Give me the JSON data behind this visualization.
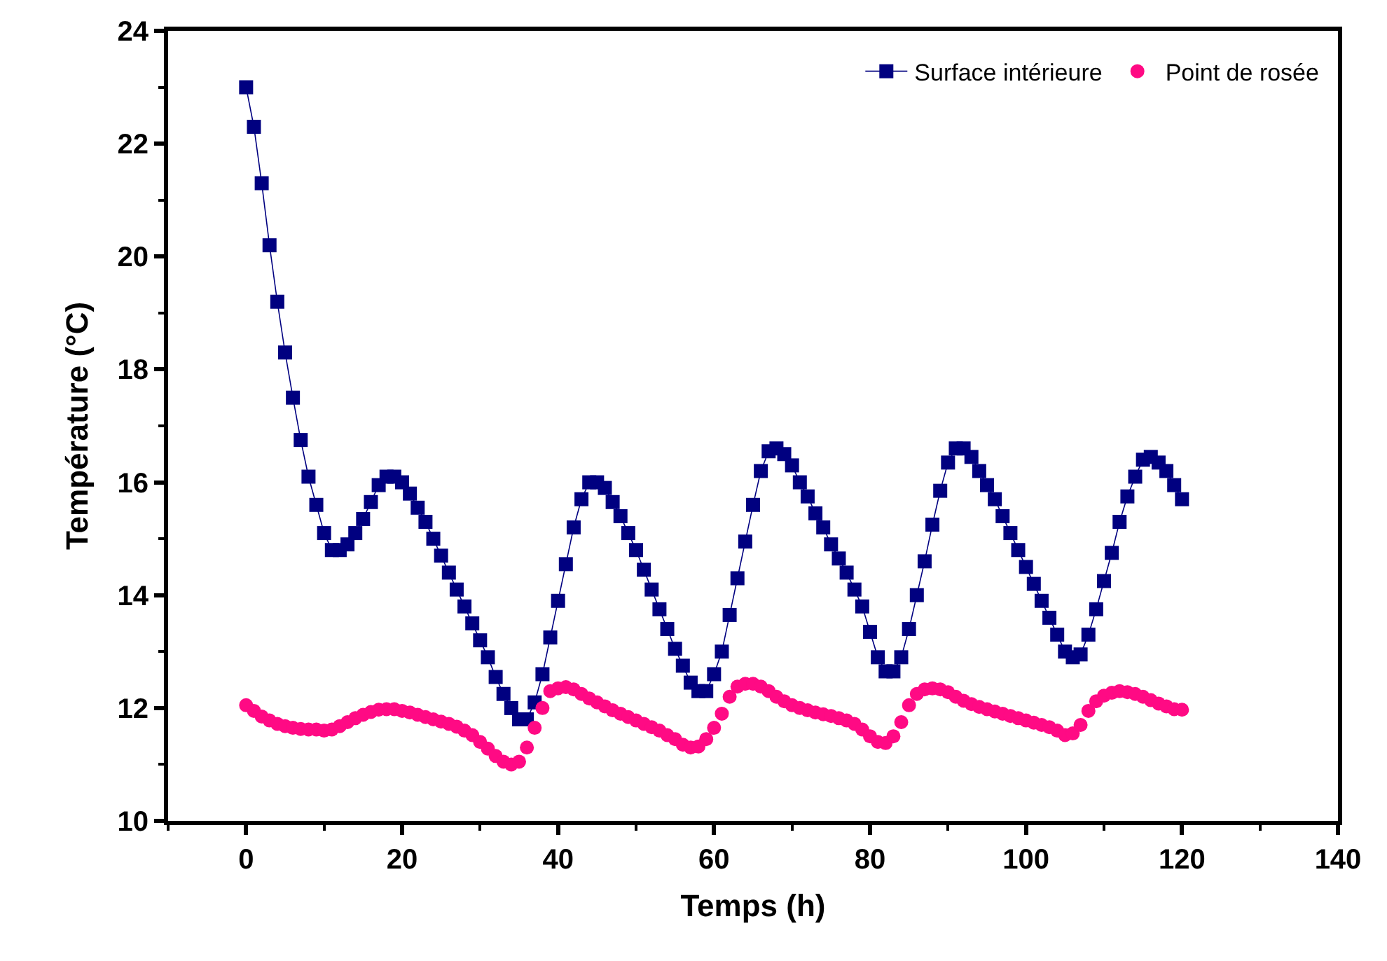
{
  "chart_data": {
    "type": "line",
    "xlabel": "Temps (h)",
    "ylabel": "Température (°C)",
    "x": [
      0,
      1,
      2,
      3,
      4,
      5,
      6,
      7,
      8,
      9,
      10,
      11,
      12,
      13,
      14,
      15,
      16,
      17,
      18,
      19,
      20,
      21,
      22,
      23,
      24,
      25,
      26,
      27,
      28,
      29,
      30,
      31,
      32,
      33,
      34,
      35,
      36,
      37,
      38,
      39,
      40,
      41,
      42,
      43,
      44,
      45,
      46,
      47,
      48,
      49,
      50,
      51,
      52,
      53,
      54,
      55,
      56,
      57,
      58,
      59,
      60,
      61,
      62,
      63,
      64,
      65,
      66,
      67,
      68,
      69,
      70,
      71,
      72,
      73,
      74,
      75,
      76,
      77,
      78,
      79,
      80,
      81,
      82,
      83,
      84,
      85,
      86,
      87,
      88,
      89,
      90,
      91,
      92,
      93,
      94,
      95,
      96,
      97,
      98,
      99,
      100,
      101,
      102,
      103,
      104,
      105,
      106,
      107,
      108,
      109,
      110,
      111,
      112,
      113,
      114,
      115,
      116,
      117,
      118,
      119,
      120
    ],
    "series": [
      {
        "name": "Surface intérieure",
        "color": "#000080",
        "marker": "square",
        "values": [
          23.0,
          22.3,
          21.3,
          20.2,
          19.2,
          18.3,
          17.5,
          16.75,
          16.1,
          15.6,
          15.1,
          14.8,
          14.8,
          14.9,
          15.1,
          15.35,
          15.65,
          15.95,
          16.1,
          16.1,
          16.0,
          15.8,
          15.55,
          15.3,
          15.0,
          14.7,
          14.4,
          14.1,
          13.8,
          13.5,
          13.2,
          12.9,
          12.55,
          12.25,
          12.0,
          11.8,
          11.8,
          12.1,
          12.6,
          13.25,
          13.9,
          14.55,
          15.2,
          15.7,
          16.0,
          16.0,
          15.9,
          15.65,
          15.4,
          15.1,
          14.8,
          14.45,
          14.1,
          13.75,
          13.4,
          13.05,
          12.75,
          12.45,
          12.3,
          12.3,
          12.6,
          13.0,
          13.65,
          14.3,
          14.95,
          15.6,
          16.2,
          16.55,
          16.6,
          16.5,
          16.3,
          16.0,
          15.75,
          15.45,
          15.2,
          14.9,
          14.65,
          14.4,
          14.1,
          13.8,
          13.35,
          12.9,
          12.65,
          12.65,
          12.9,
          13.4,
          14.0,
          14.6,
          15.25,
          15.85,
          16.35,
          16.6,
          16.6,
          16.45,
          16.2,
          15.95,
          15.7,
          15.4,
          15.1,
          14.8,
          14.5,
          14.2,
          13.9,
          13.6,
          13.3,
          13.0,
          12.9,
          12.95,
          13.3,
          13.75,
          14.25,
          14.75,
          15.3,
          15.75,
          16.1,
          16.4,
          16.45,
          16.35,
          16.2,
          15.95,
          15.7
        ]
      },
      {
        "name": "Point de rosée",
        "color": "#ff0a84",
        "marker": "circle",
        "type": "scatter",
        "values": [
          12.05,
          11.95,
          11.85,
          11.78,
          11.72,
          11.68,
          11.65,
          11.63,
          11.62,
          11.62,
          11.6,
          11.62,
          11.68,
          11.75,
          11.82,
          11.88,
          11.93,
          11.97,
          11.98,
          11.98,
          11.95,
          11.92,
          11.88,
          11.84,
          11.8,
          11.76,
          11.72,
          11.67,
          11.6,
          11.52,
          11.4,
          11.28,
          11.15,
          11.05,
          11.0,
          11.05,
          11.3,
          11.65,
          12.0,
          12.3,
          12.35,
          12.37,
          12.33,
          12.25,
          12.17,
          12.1,
          12.03,
          11.96,
          11.9,
          11.84,
          11.78,
          11.72,
          11.66,
          11.6,
          11.52,
          11.45,
          11.35,
          11.3,
          11.32,
          11.45,
          11.65,
          11.9,
          12.2,
          12.38,
          12.43,
          12.43,
          12.38,
          12.3,
          12.2,
          12.12,
          12.05,
          12.0,
          11.96,
          11.92,
          11.89,
          11.86,
          11.82,
          11.78,
          11.72,
          11.62,
          11.5,
          11.4,
          11.38,
          11.5,
          11.75,
          12.05,
          12.25,
          12.33,
          12.35,
          12.33,
          12.28,
          12.2,
          12.13,
          12.07,
          12.02,
          11.98,
          11.94,
          11.9,
          11.86,
          11.82,
          11.78,
          11.74,
          11.7,
          11.66,
          11.6,
          11.52,
          11.55,
          11.7,
          11.95,
          12.12,
          12.22,
          12.27,
          12.3,
          12.28,
          12.25,
          12.2,
          12.14,
          12.08,
          12.03,
          11.98,
          11.97
        ]
      }
    ],
    "xlim": [
      -10,
      140
    ],
    "xticks": [
      0,
      20,
      40,
      60,
      80,
      100,
      120,
      140
    ],
    "ylim": [
      10,
      24
    ],
    "yticks": [
      10,
      12,
      14,
      16,
      18,
      20,
      22,
      24
    ],
    "legend": "top right",
    "line_style": "solid"
  }
}
